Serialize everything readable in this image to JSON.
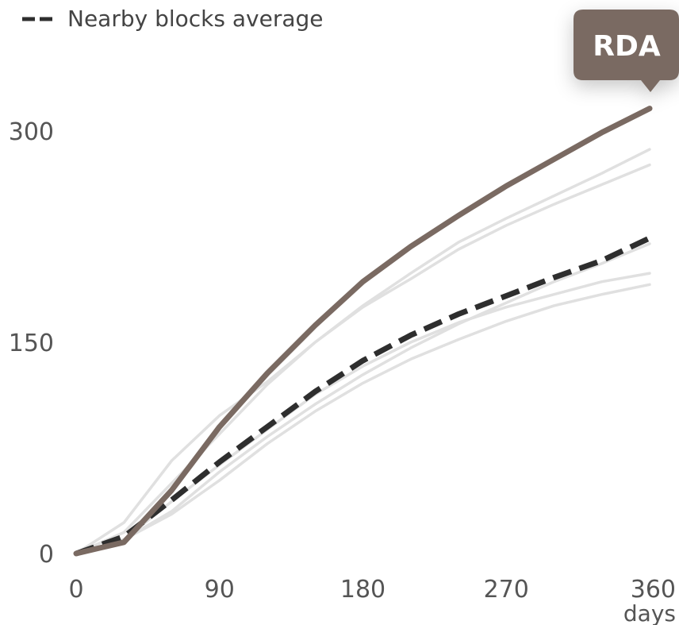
{
  "chart_data": {
    "type": "line",
    "title": "",
    "xlabel": "",
    "ylabel": "",
    "x_unit": "days",
    "xlim": [
      0,
      360
    ],
    "ylim": [
      0,
      320
    ],
    "x_ticks": [
      0,
      90,
      180,
      270,
      360
    ],
    "y_ticks": [
      0,
      150,
      300
    ],
    "grid": false,
    "legend": {
      "label": "Nearby blocks average",
      "placement": "top-left"
    },
    "highlight_label": "RDA",
    "colors": {
      "highlight": "#7a6a62",
      "average": "#2e2e2e",
      "others": "#e0e0e0",
      "ticks": "#555555"
    },
    "series": [
      {
        "role": "highlight",
        "x": [
          0,
          30,
          60,
          90,
          120,
          150,
          180,
          210,
          240,
          270,
          300,
          330,
          360
        ],
        "y": [
          0,
          8,
          45,
          90,
          128,
          162,
          193,
          218,
          240,
          261,
          280,
          299,
          316
        ]
      },
      {
        "name": "Nearby blocks average",
        "role": "average",
        "x": [
          0,
          30,
          60,
          90,
          120,
          150,
          180,
          210,
          240,
          270,
          300,
          330,
          360
        ],
        "y": [
          0,
          12,
          38,
          65,
          90,
          115,
          137,
          155,
          170,
          183,
          196,
          208,
          224
        ]
      },
      {
        "role": "other",
        "x": [
          0,
          30,
          60,
          90,
          120,
          150,
          180,
          210,
          240,
          270,
          300,
          330,
          360
        ],
        "y": [
          0,
          22,
          66,
          98,
          122,
          150,
          176,
          199,
          221,
          238,
          254,
          270,
          287
        ]
      },
      {
        "role": "other",
        "x": [
          0,
          30,
          60,
          90,
          120,
          150,
          180,
          210,
          240,
          270,
          300,
          330,
          360
        ],
        "y": [
          0,
          15,
          50,
          85,
          120,
          150,
          175,
          195,
          216,
          233,
          248,
          262,
          276
        ]
      },
      {
        "role": "other",
        "x": [
          0,
          30,
          60,
          90,
          120,
          150,
          180,
          210,
          240,
          270,
          300,
          330,
          360
        ],
        "y": [
          0,
          10,
          30,
          58,
          83,
          106,
          127,
          146,
          163,
          178,
          193,
          206,
          220
        ]
      },
      {
        "role": "other",
        "x": [
          0,
          30,
          60,
          90,
          120,
          150,
          180,
          210,
          240,
          270,
          300,
          330,
          360
        ],
        "y": [
          0,
          10,
          37,
          63,
          88,
          113,
          133,
          150,
          164,
          175,
          184,
          193,
          199
        ]
      },
      {
        "role": "other",
        "x": [
          0,
          30,
          60,
          90,
          120,
          150,
          180,
          210,
          240,
          270,
          300,
          330,
          360
        ],
        "y": [
          0,
          10,
          28,
          52,
          78,
          101,
          121,
          138,
          152,
          165,
          176,
          184,
          191
        ]
      }
    ]
  }
}
